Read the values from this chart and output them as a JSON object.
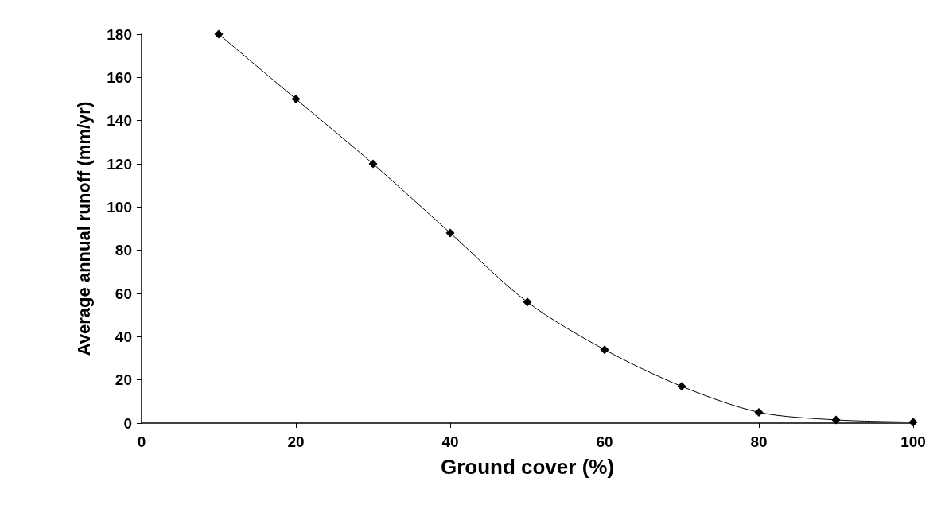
{
  "chart_data": {
    "type": "line",
    "xlabel": "Ground cover (%)",
    "ylabel": "Average annual runoff (mm/yr)",
    "x": [
      10,
      20,
      30,
      40,
      50,
      60,
      70,
      80,
      90,
      100
    ],
    "series": [
      {
        "color": "#000000",
        "values": [
          180,
          150,
          120,
          88,
          56,
          34,
          17,
          5,
          1.5,
          0.5
        ]
      }
    ],
    "xlim": [
      0,
      100
    ],
    "xticks": [
      0,
      20,
      40,
      60,
      80,
      100
    ],
    "ylim": [
      0,
      180
    ],
    "yticks": [
      0,
      20,
      40,
      60,
      80,
      100,
      120,
      140,
      160,
      180
    ],
    "grid": false,
    "marker": "diamond",
    "line_style": "solid"
  }
}
